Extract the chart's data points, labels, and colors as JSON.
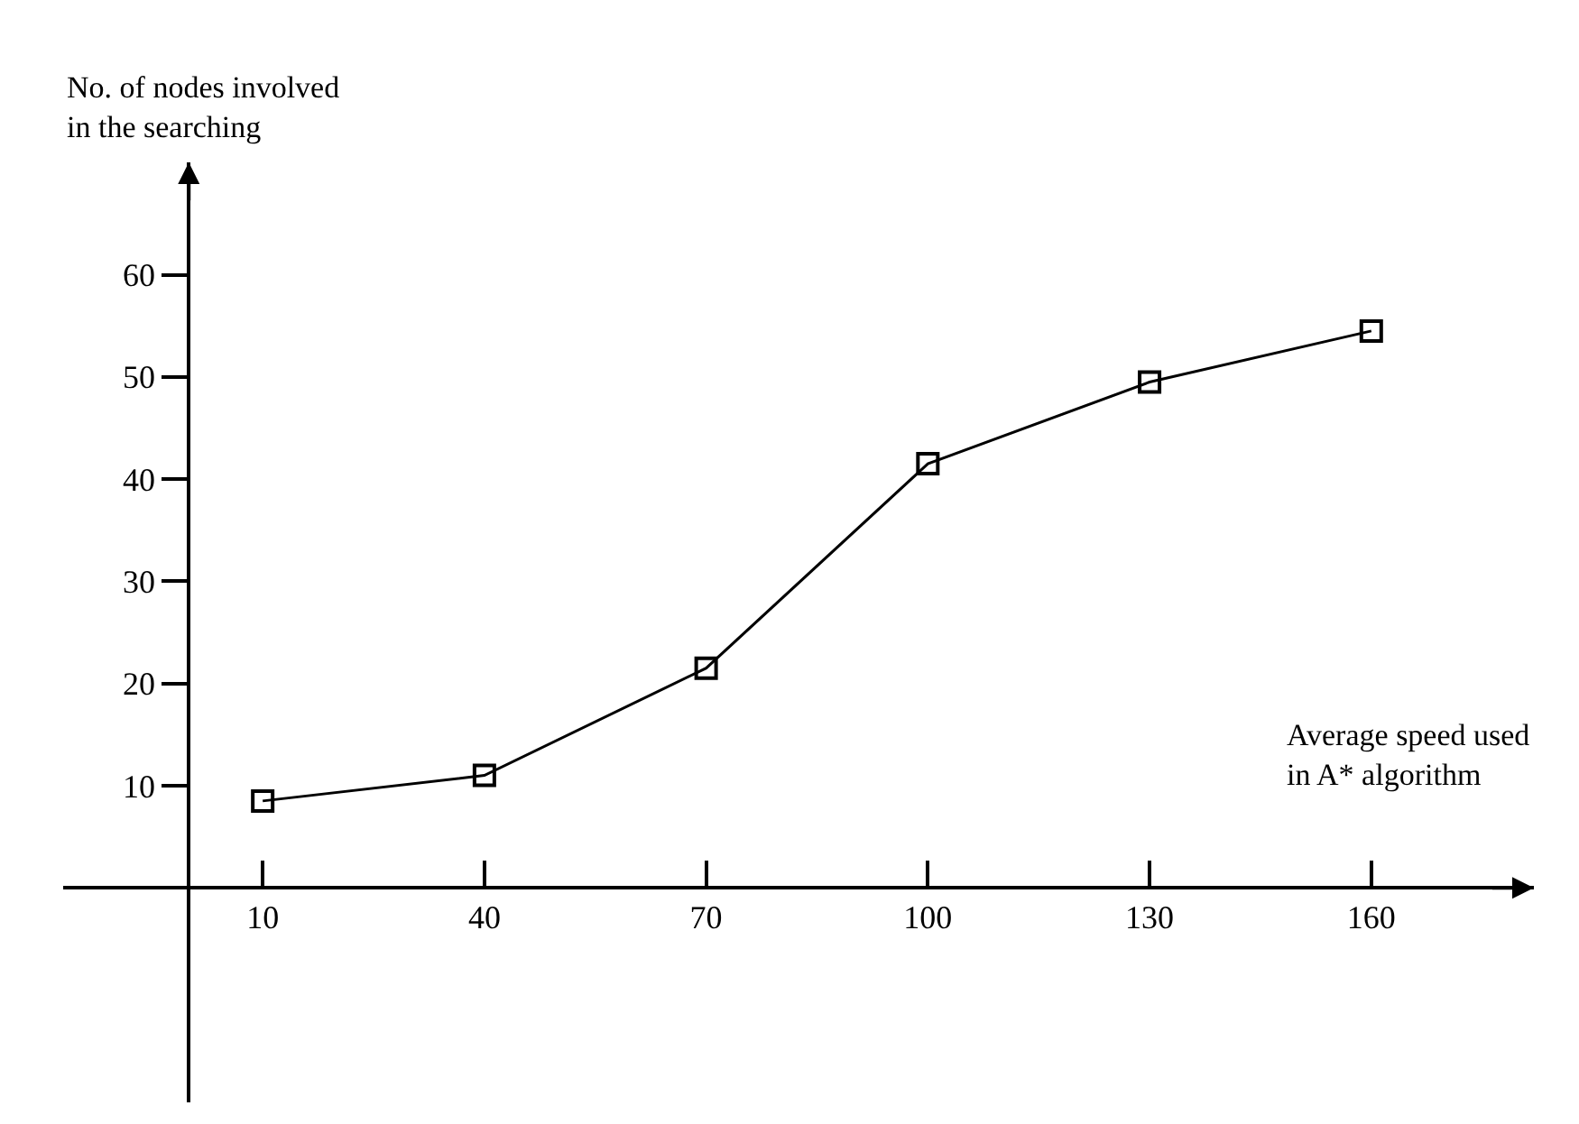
{
  "chart_data": {
    "type": "line",
    "xlabel": "Average speed used\nin A* algorithm",
    "ylabel": "No. of nodes involved\nin the searching",
    "x": [
      10,
      40,
      70,
      100,
      130,
      160
    ],
    "series": [
      {
        "color": "#000000",
        "values": [
          8.5,
          11,
          21.5,
          41.5,
          49.5,
          54.5
        ]
      }
    ],
    "xlim": [
      -17,
      182
    ],
    "ylim": [
      -21,
      71
    ],
    "xticks": [
      10,
      40,
      70,
      100,
      130,
      160
    ],
    "yticks": [
      10,
      20,
      30,
      40,
      50,
      60
    ],
    "marker": "square",
    "line_style": "solid",
    "legend": false
  }
}
